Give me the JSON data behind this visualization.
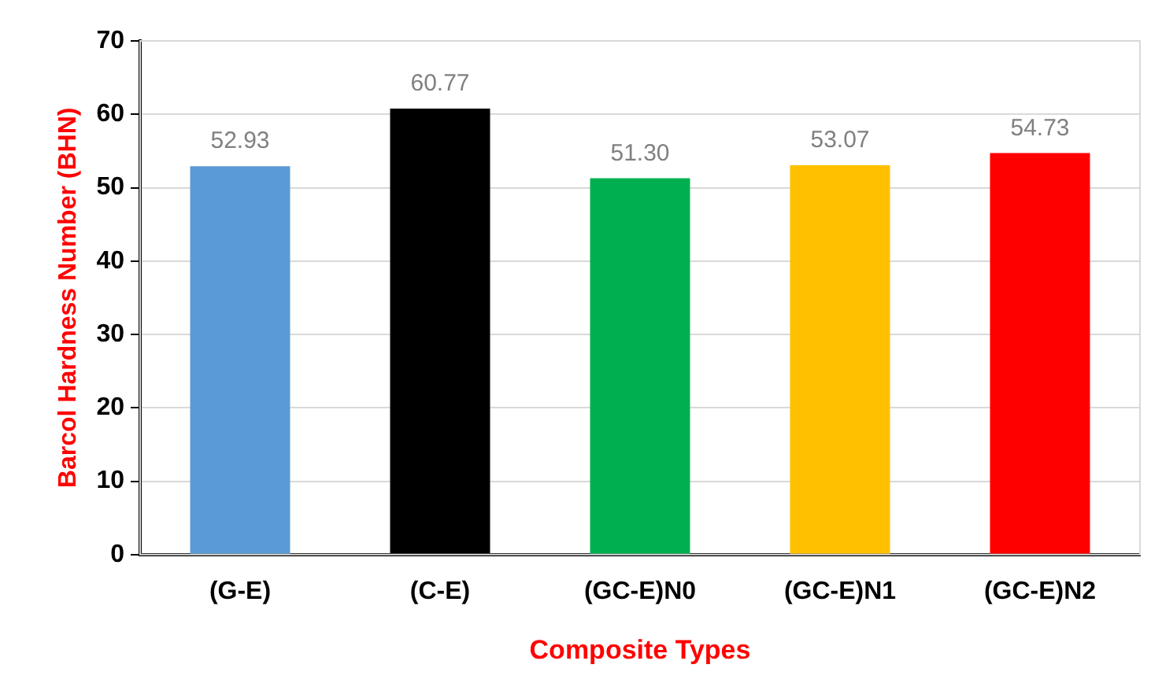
{
  "chart_data": {
    "type": "bar",
    "xlabel": "Composite Types",
    "ylabel": "Barcol Hardness Number (BHN)",
    "categories": [
      "(G-E)",
      "(C-E)",
      "(GC-E)N0",
      "(GC-E)N1",
      "(GC-E)N2"
    ],
    "values": [
      52.93,
      60.77,
      51.3,
      53.07,
      54.73
    ],
    "colors": [
      "#5b9bd5",
      "#000000",
      "#00b050",
      "#ffc000",
      "#ff0000"
    ],
    "value_labels": [
      "52.93",
      "60.77",
      "51.30",
      "53.07",
      "54.73"
    ],
    "ylim": [
      0,
      70
    ],
    "yticks": [
      0,
      10,
      20,
      30,
      40,
      50,
      60,
      70
    ],
    "grid": "y",
    "legend": false
  }
}
